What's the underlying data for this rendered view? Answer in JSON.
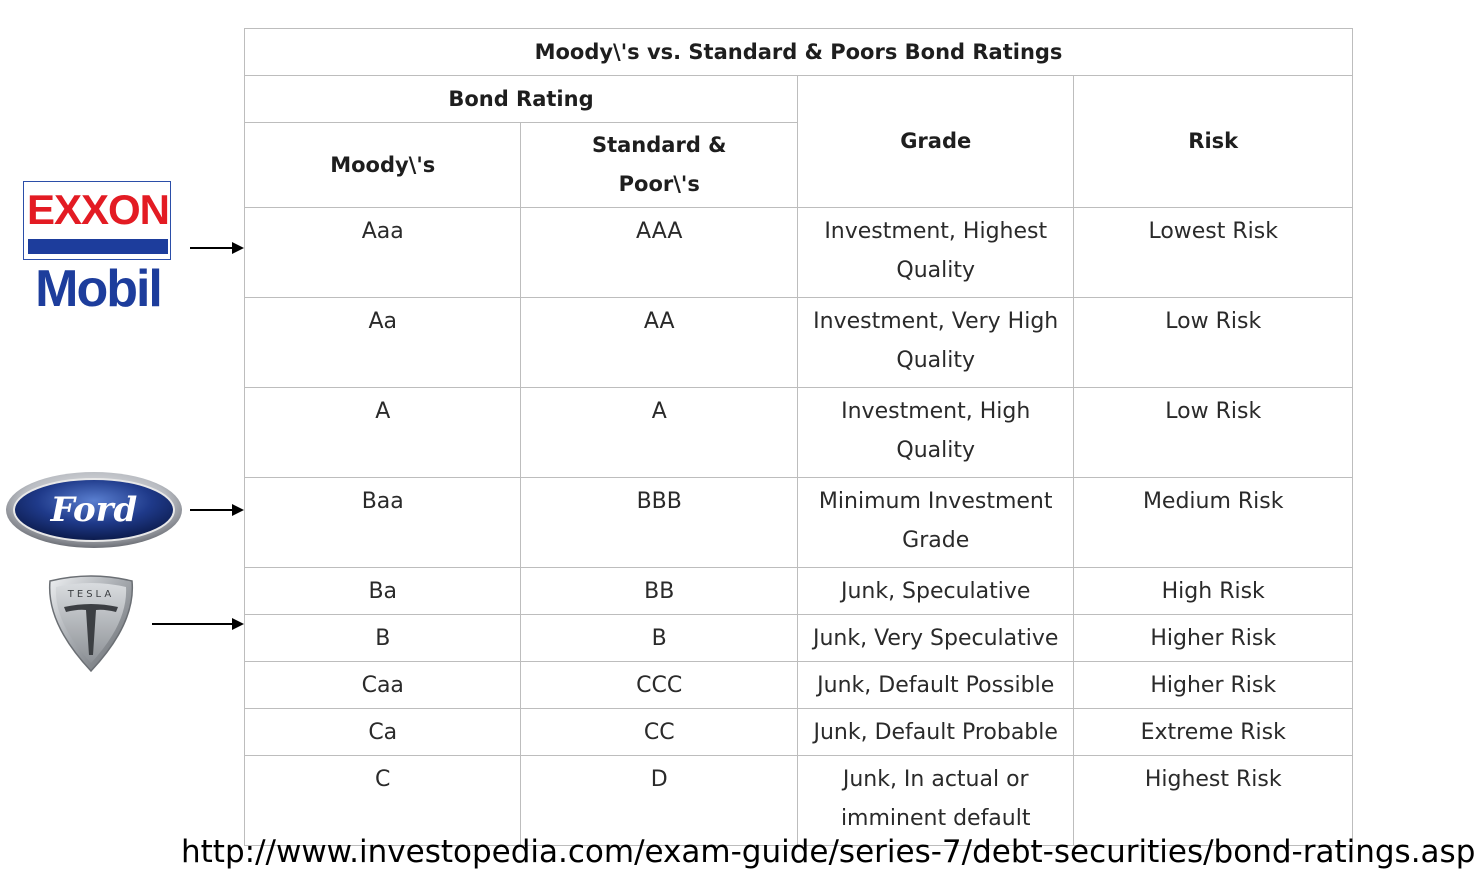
{
  "table": {
    "title": "Moody\\'s vs. Standard & Poors Bond Ratings",
    "group_header": "Bond Rating",
    "headers": {
      "moodys": "Moody\\'s",
      "sp_line1": "Standard &",
      "sp_line2": "Poor\\'s",
      "grade": "Grade",
      "risk": "Risk"
    },
    "rows": [
      {
        "moodys": "Aaa",
        "sp": "AAA",
        "grade_line1": "Investment, Highest",
        "grade_line2": "Quality",
        "risk": "Lowest Risk"
      },
      {
        "moodys": "Aa",
        "sp": "AA",
        "grade_line1": "Investment, Very High",
        "grade_line2": "Quality",
        "risk": "Low Risk"
      },
      {
        "moodys": "A",
        "sp": "A",
        "grade_line1": "Investment, High",
        "grade_line2": "Quality",
        "risk": "Low Risk"
      },
      {
        "moodys": "Baa",
        "sp": "BBB",
        "grade_line1": "Minimum Investment",
        "grade_line2": "Grade",
        "risk": "Medium Risk"
      },
      {
        "moodys": "Ba",
        "sp": "BB",
        "grade_line1": "Junk, Speculative",
        "grade_line2": "",
        "risk": "High Risk"
      },
      {
        "moodys": "B",
        "sp": "B",
        "grade_line1": "Junk, Very Speculative",
        "grade_line2": "",
        "risk": "Higher Risk"
      },
      {
        "moodys": "Caa",
        "sp": "CCC",
        "grade_line1": "Junk, Default Possible",
        "grade_line2": "",
        "risk": "Higher Risk"
      },
      {
        "moodys": "Ca",
        "sp": "CC",
        "grade_line1": "Junk, Default Probable",
        "grade_line2": "",
        "risk": "Extreme Risk"
      },
      {
        "moodys": "C",
        "sp": "D",
        "grade_line1": "Junk, In actual or",
        "grade_line2": "imminent default",
        "risk": "Highest Risk"
      }
    ]
  },
  "logos": {
    "exxon_top": "EXXON",
    "exxon_bottom": "Mobil",
    "ford": "Ford",
    "tesla": "TESLA"
  },
  "colors": {
    "exxon_red": "#e31b23",
    "exxon_blue": "#1d3d9c",
    "ford_blue": "#1f3a8a",
    "tesla_silver": "#b8bcc0",
    "table_border": "#bdbdbd"
  },
  "source_url": "http://www.investopedia.com/exam-guide/series-7/debt-securities/bond-ratings.asp"
}
